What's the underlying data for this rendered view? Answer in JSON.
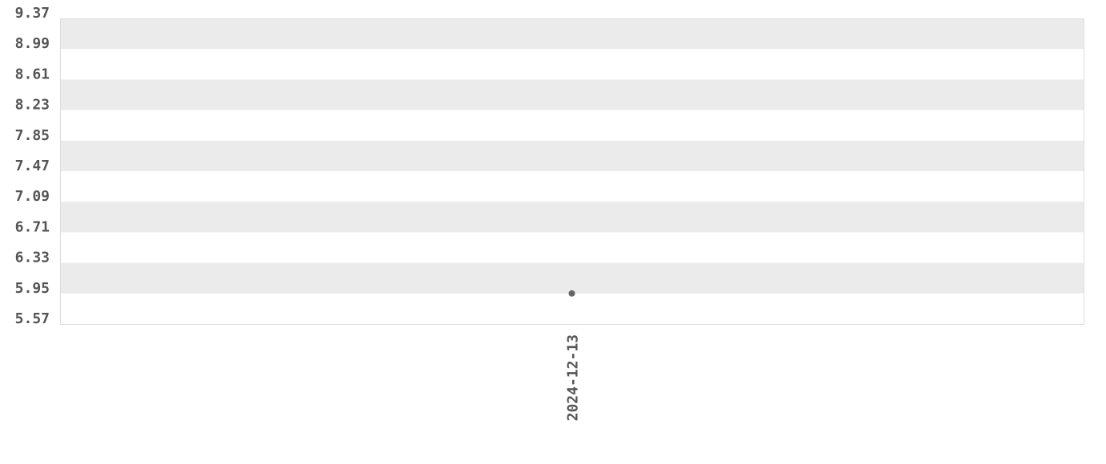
{
  "chart_data": {
    "type": "scatter",
    "title": "",
    "xlabel": "",
    "ylabel": "",
    "x_ticks": [
      "2024-12-13"
    ],
    "y_ticks": [
      "9.37",
      "8.99",
      "8.61",
      "8.23",
      "7.85",
      "7.47",
      "7.09",
      "6.71",
      "6.33",
      "5.95",
      "5.57"
    ],
    "ylim": [
      5.57,
      9.37
    ],
    "grid": "alternating horizontal bands",
    "points": [
      {
        "x": "2024-12-13",
        "y": 5.95
      }
    ],
    "colors": {
      "point": "#666666",
      "band": "#ebebeb",
      "text": "#555555",
      "border": "#dddddd"
    }
  }
}
